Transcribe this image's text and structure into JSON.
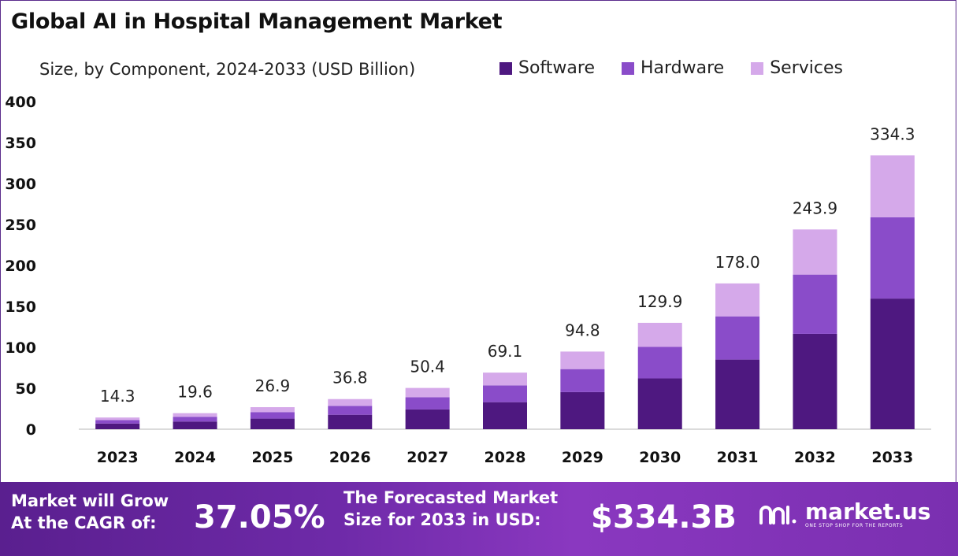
{
  "title": "Global AI in Hospital Management Market",
  "subtitle": "Size, by Component, 2024-2033 (USD Billion)",
  "colors": {
    "software": "#4e1880",
    "hardware": "#8a4cc9",
    "services": "#d5a9ea"
  },
  "chart_data": {
    "type": "bar",
    "stacked": true,
    "categories": [
      "2023",
      "2024",
      "2025",
      "2026",
      "2027",
      "2028",
      "2029",
      "2030",
      "2031",
      "2032",
      "2033"
    ],
    "series": [
      {
        "name": "Software",
        "values": [
          6.9,
          9.4,
          12.9,
          17.6,
          24.1,
          33.0,
          45.3,
          62.0,
          85.0,
          116.4,
          159.5
        ]
      },
      {
        "name": "Hardware",
        "values": [
          4.2,
          5.8,
          8.0,
          10.9,
          14.9,
          20.5,
          28.1,
          38.5,
          52.8,
          72.4,
          99.2
        ]
      },
      {
        "name": "Services",
        "values": [
          3.2,
          4.4,
          6.0,
          8.3,
          11.4,
          15.6,
          21.4,
          29.4,
          40.2,
          55.1,
          75.6
        ]
      }
    ],
    "totals": [
      14.3,
      19.6,
      26.9,
      36.8,
      50.4,
      69.1,
      94.8,
      129.9,
      178.0,
      243.9,
      334.3
    ],
    "total_labels": [
      "14.3",
      "19.6",
      "26.9",
      "36.8",
      "50.4",
      "69.1",
      "94.8",
      "129.9",
      "178.0",
      "243.9",
      "334.3"
    ],
    "ylim": [
      0,
      400
    ],
    "yticks": [
      0,
      50,
      100,
      150,
      200,
      250,
      300,
      350,
      400
    ],
    "legend_position": "top-right",
    "grid": false
  },
  "footer": {
    "cagr_label_1": "Market will Grow",
    "cagr_label_2": "At the CAGR of:",
    "cagr_value": "37.05%",
    "forecast_label_1": "The Forecasted Market",
    "forecast_label_2": "Size for 2033 in USD:",
    "forecast_value": "$334.3B",
    "brand": "market.us",
    "brand_tagline": "ONE STOP SHOP FOR THE REPORTS"
  }
}
